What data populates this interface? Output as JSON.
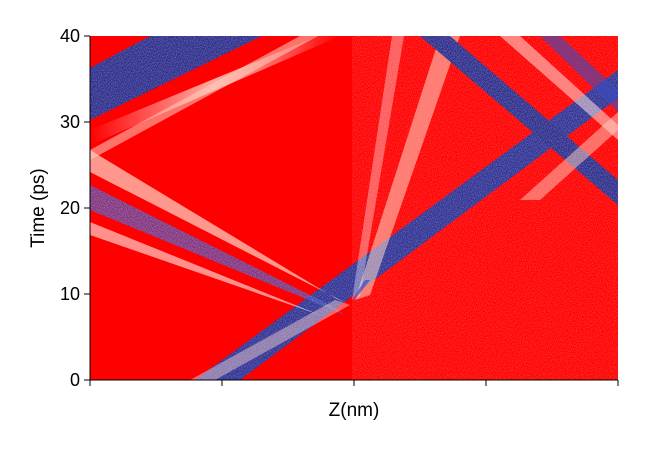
{
  "chart_data": {
    "type": "heatmap",
    "title": "",
    "xlabel": "Z(nm)",
    "ylabel": "Time (ps)",
    "ylim": [
      0,
      40
    ],
    "yticks": [
      0,
      10,
      20,
      30,
      40
    ],
    "ytick_labels": [
      "0",
      "10",
      "20",
      "30",
      "40"
    ],
    "xtick_count": 5,
    "xtick_labels_shown": false,
    "background_color": "#ff0000",
    "colormap": [
      "#1a1a7a",
      "#3b4cc0",
      "#ffffff",
      "#ff0000"
    ],
    "grid": false,
    "legend": "none"
  }
}
